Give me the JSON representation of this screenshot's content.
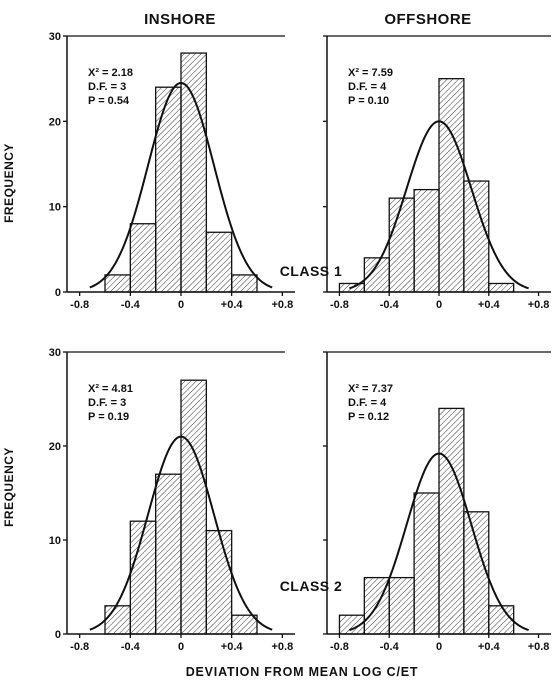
{
  "figure": {
    "col_titles": [
      "INSHORE",
      "OFFSHORE"
    ],
    "ylabel": "FREQUENCY",
    "xlabel": "DEVIATION FROM MEAN LOG C/ET",
    "class_labels": [
      "CLASS 1",
      "CLASS 2"
    ]
  },
  "chart_data": [
    {
      "type": "bar",
      "panel": "Class 1 Inshore",
      "bin_width": 0.2,
      "bin_centers": [
        -0.5,
        -0.3,
        -0.1,
        0.1,
        0.3,
        0.5
      ],
      "values": [
        2,
        8,
        24,
        28,
        7,
        2
      ],
      "curve_peak": 24.5,
      "stats": [
        "X² = 2.18",
        "D.F. = 3",
        "P = 0.54"
      ],
      "xticks": [
        "-0.8",
        "-0.4",
        "0",
        "+0.4",
        "+0.8"
      ],
      "yticks": [
        "0",
        "10",
        "20",
        "30"
      ],
      "xlim": [
        -0.9,
        0.9
      ],
      "ylim": [
        0,
        30
      ],
      "xlabel": "DEVIATION FROM MEAN LOG C/ET",
      "ylabel": "FREQUENCY",
      "grid": false
    },
    {
      "type": "bar",
      "panel": "Class 1 Offshore",
      "bin_width": 0.2,
      "bin_centers": [
        -0.7,
        -0.5,
        -0.3,
        -0.1,
        0.1,
        0.3,
        0.5
      ],
      "values": [
        1,
        4,
        11,
        12,
        25,
        13,
        1
      ],
      "curve_peak": 20,
      "stats": [
        "X² = 7.59",
        "D.F. = 4",
        "P = 0.10"
      ],
      "xticks": [
        "-0.8",
        "-0.4",
        "0",
        "+0.4",
        "+0.8"
      ],
      "yticks": [],
      "xlim": [
        -0.9,
        0.9
      ],
      "ylim": [
        0,
        30
      ],
      "xlabel": "DEVIATION FROM MEAN LOG C/ET",
      "ylabel": "FREQUENCY",
      "grid": false
    },
    {
      "type": "bar",
      "panel": "Class 2 Inshore",
      "bin_width": 0.2,
      "bin_centers": [
        -0.5,
        -0.3,
        -0.1,
        0.1,
        0.3,
        0.5
      ],
      "values": [
        3,
        12,
        17,
        27,
        11,
        2
      ],
      "curve_peak": 21,
      "stats": [
        "X² = 4.81",
        "D.F. = 3",
        "P = 0.19"
      ],
      "xticks": [
        "-0.8",
        "-0.4",
        "0",
        "+0.4",
        "+0.8"
      ],
      "yticks": [
        "0",
        "10",
        "20",
        "30"
      ],
      "xlim": [
        -0.9,
        0.9
      ],
      "ylim": [
        0,
        30
      ],
      "xlabel": "DEVIATION FROM MEAN LOG C/ET",
      "ylabel": "FREQUENCY",
      "grid": false
    },
    {
      "type": "bar",
      "panel": "Class 2 Offshore",
      "bin_width": 0.2,
      "bin_centers": [
        -0.7,
        -0.5,
        -0.3,
        -0.1,
        0.1,
        0.3,
        0.5
      ],
      "values": [
        2,
        6,
        6,
        15,
        24,
        13,
        3
      ],
      "curve_peak": 19.2,
      "stats": [
        "X² = 7.37",
        "D.F. = 4",
        "P = 0.12"
      ],
      "xticks": [
        "-0.8",
        "-0.4",
        "0",
        "+0.4",
        "+0.8"
      ],
      "yticks": [],
      "xlim": [
        -0.9,
        0.9
      ],
      "ylim": [
        0,
        30
      ],
      "xlabel": "DEVIATION FROM MEAN LOG C/ET",
      "ylabel": "FREQUENCY",
      "grid": false
    }
  ],
  "colors": {
    "ink": "#111111",
    "background": "#ffffff"
  }
}
